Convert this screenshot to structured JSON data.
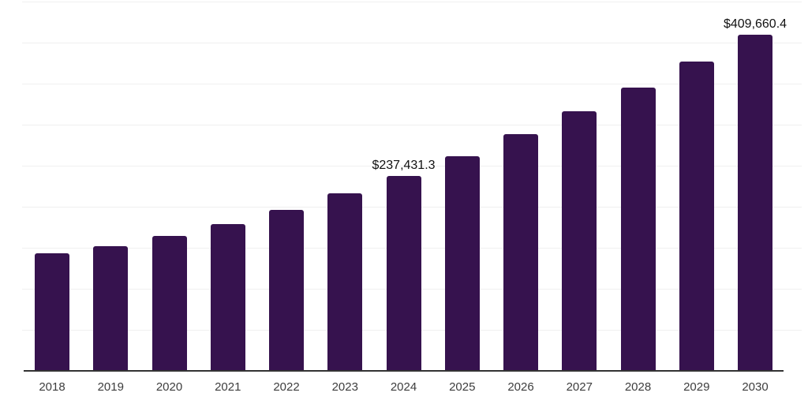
{
  "chart_data": {
    "type": "bar",
    "title": "",
    "xlabel": "",
    "ylabel": "",
    "categories": [
      "2018",
      "2019",
      "2020",
      "2021",
      "2022",
      "2023",
      "2024",
      "2025",
      "2026",
      "2027",
      "2028",
      "2029",
      "2030"
    ],
    "values": [
      143300,
      151900,
      164900,
      178800,
      196100,
      216300,
      237431.3,
      261500,
      288500,
      316300,
      345200,
      376900,
      409660.4
    ],
    "labels": [
      "",
      "",
      "",
      "",
      "",
      "",
      "$237,431.3",
      "",
      "",
      "",
      "",
      "",
      "$409,660.4"
    ],
    "ylim": [
      0,
      450000
    ],
    "gridline_step": 50000,
    "grid": "horizontal",
    "legend": "none",
    "colors": {
      "bar": "#36124e",
      "grid": "#f0f0f0",
      "axis": "#333333",
      "tick_label": "#3d3d3d",
      "data_label": "#111111",
      "background": "#ffffff"
    }
  }
}
